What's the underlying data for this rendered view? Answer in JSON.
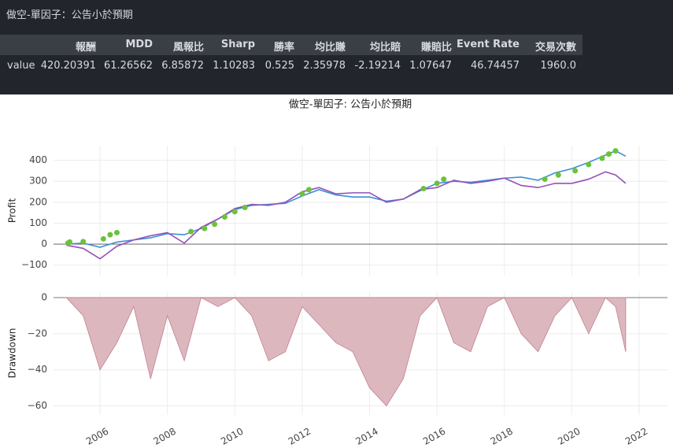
{
  "header": {
    "title": "做空-單因子：公告小於預期"
  },
  "table": {
    "columns": [
      "報酬",
      "MDD",
      "風報比",
      "Sharp",
      "勝率",
      "均比賺",
      "均比賠",
      "賺賠比",
      "Event Rate",
      "交易次數"
    ],
    "rows": [
      {
        "label": "value",
        "cells": [
          "420.20391",
          "61.26562",
          "6.85872",
          "1.10283",
          "0.525",
          "2.35978",
          "-2.19214",
          "1.07647",
          "46.74457",
          "1960.0"
        ]
      }
    ]
  },
  "chart_data": [
    {
      "type": "line",
      "title": "做空-單因子: 公告小於預期",
      "ylabel": "Profit",
      "xlim": [
        2004.62,
        2022.84
      ],
      "ylim": [
        -150,
        470
      ],
      "yticks": [
        {
          "value": -100,
          "label": "−100"
        },
        0,
        100,
        200,
        300,
        400
      ],
      "grid": true,
      "x": [
        2005.0,
        2005.5,
        2006.0,
        2006.5,
        2007.0,
        2007.5,
        2008.0,
        2008.5,
        2009.0,
        2009.5,
        2010.0,
        2010.5,
        2011.0,
        2011.5,
        2012.0,
        2012.5,
        2013.0,
        2013.5,
        2014.0,
        2014.5,
        2015.0,
        2015.5,
        2016.0,
        2016.5,
        2017.0,
        2017.5,
        2018.0,
        2018.5,
        2019.0,
        2019.5,
        2020.0,
        2020.5,
        2021.0,
        2021.3,
        2021.6
      ],
      "series": [
        {
          "style": "line",
          "color": "#3a8fd9",
          "values": [
            0,
            5,
            -15,
            10,
            20,
            30,
            50,
            45,
            75,
            120,
            165,
            185,
            190,
            195,
            230,
            260,
            235,
            225,
            225,
            205,
            215,
            255,
            290,
            300,
            295,
            305,
            315,
            320,
            305,
            340,
            360,
            390,
            425,
            445,
            420
          ]
        },
        {
          "style": "line",
          "color": "#9451b8",
          "values": [
            -5,
            -20,
            -70,
            -10,
            20,
            40,
            55,
            5,
            80,
            120,
            170,
            190,
            185,
            200,
            250,
            270,
            240,
            245,
            245,
            200,
            215,
            260,
            270,
            305,
            290,
            300,
            315,
            280,
            270,
            290,
            290,
            310,
            345,
            330,
            290
          ]
        },
        {
          "style": "scatter",
          "color": "#6cc23a",
          "x": [
            2005.05,
            2005.1,
            2005.5,
            2006.1,
            2006.3,
            2006.5,
            2008.7,
            2009.1,
            2009.4,
            2009.7,
            2010.0,
            2010.3,
            2012.0,
            2012.2,
            2015.6,
            2016.0,
            2016.2,
            2019.2,
            2019.6,
            2020.1,
            2020.5,
            2020.9,
            2021.1,
            2021.3
          ],
          "values": [
            5,
            10,
            12,
            25,
            45,
            55,
            60,
            75,
            95,
            130,
            155,
            175,
            240,
            260,
            265,
            290,
            310,
            310,
            330,
            350,
            380,
            410,
            430,
            445
          ]
        }
      ]
    },
    {
      "type": "area",
      "ylabel": "Drawdown",
      "color": "#ddb7be",
      "edge": "#c0808f",
      "xlim": [
        2004.62,
        2022.84
      ],
      "ylim": [
        -65,
        3.5
      ],
      "yticks": [
        {
          "value": -60,
          "label": "−60"
        },
        {
          "value": -40,
          "label": "−40"
        },
        {
          "value": -20,
          "label": "−20"
        },
        0
      ],
      "xticks": [
        2006,
        2008,
        2010,
        2012,
        2014,
        2016,
        2018,
        2020,
        2022
      ],
      "grid": true,
      "x": [
        2005.0,
        2005.5,
        2006.0,
        2006.5,
        2007.0,
        2007.5,
        2008.0,
        2008.5,
        2009.0,
        2009.5,
        2010.0,
        2010.5,
        2011.0,
        2011.5,
        2012.0,
        2012.5,
        2013.0,
        2013.5,
        2014.0,
        2014.5,
        2015.0,
        2015.5,
        2016.0,
        2016.5,
        2017.0,
        2017.5,
        2018.0,
        2018.5,
        2019.0,
        2019.5,
        2020.0,
        2020.5,
        2021.0,
        2021.3,
        2021.6
      ],
      "values": [
        0,
        -10,
        -40,
        -25,
        -5,
        -45,
        -10,
        -35,
        0,
        -5,
        0,
        -10,
        -35,
        -30,
        -5,
        -15,
        -25,
        -30,
        -50,
        -60,
        -45,
        -10,
        0,
        -25,
        -30,
        -5,
        0,
        -20,
        -30,
        -10,
        0,
        -20,
        0,
        -5,
        -30
      ]
    }
  ]
}
